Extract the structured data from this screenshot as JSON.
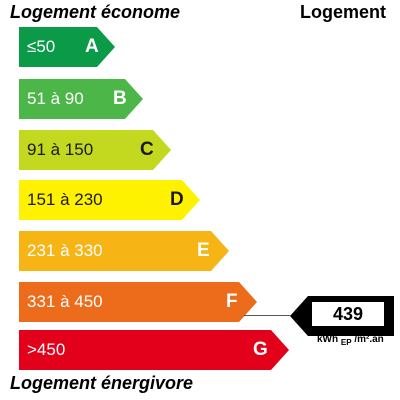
{
  "header": {
    "left_label": "Logement économe",
    "right_label": "Logement"
  },
  "footer": {
    "label": "Logement énergivore"
  },
  "scale": [
    {
      "letter": "A",
      "range": "≤50",
      "color": "#0a9a48"
    },
    {
      "letter": "B",
      "range": "51 à 90",
      "color": "#4cb748"
    },
    {
      "letter": "C",
      "range": "91 à 150",
      "color": "#c2d920"
    },
    {
      "letter": "D",
      "range": "151 à 230",
      "color": "#fff200"
    },
    {
      "letter": "E",
      "range": "231 à 330",
      "color": "#f7b415"
    },
    {
      "letter": "F",
      "range": "331 à 450",
      "color": "#ec6c1c"
    },
    {
      "letter": "G",
      "range": ">450",
      "color": "#e2001a"
    }
  ],
  "indicator": {
    "value": "439",
    "unit_main": "kWh",
    "unit_sub": "EP",
    "unit_tail": "/m².an",
    "current_class": "F"
  }
}
